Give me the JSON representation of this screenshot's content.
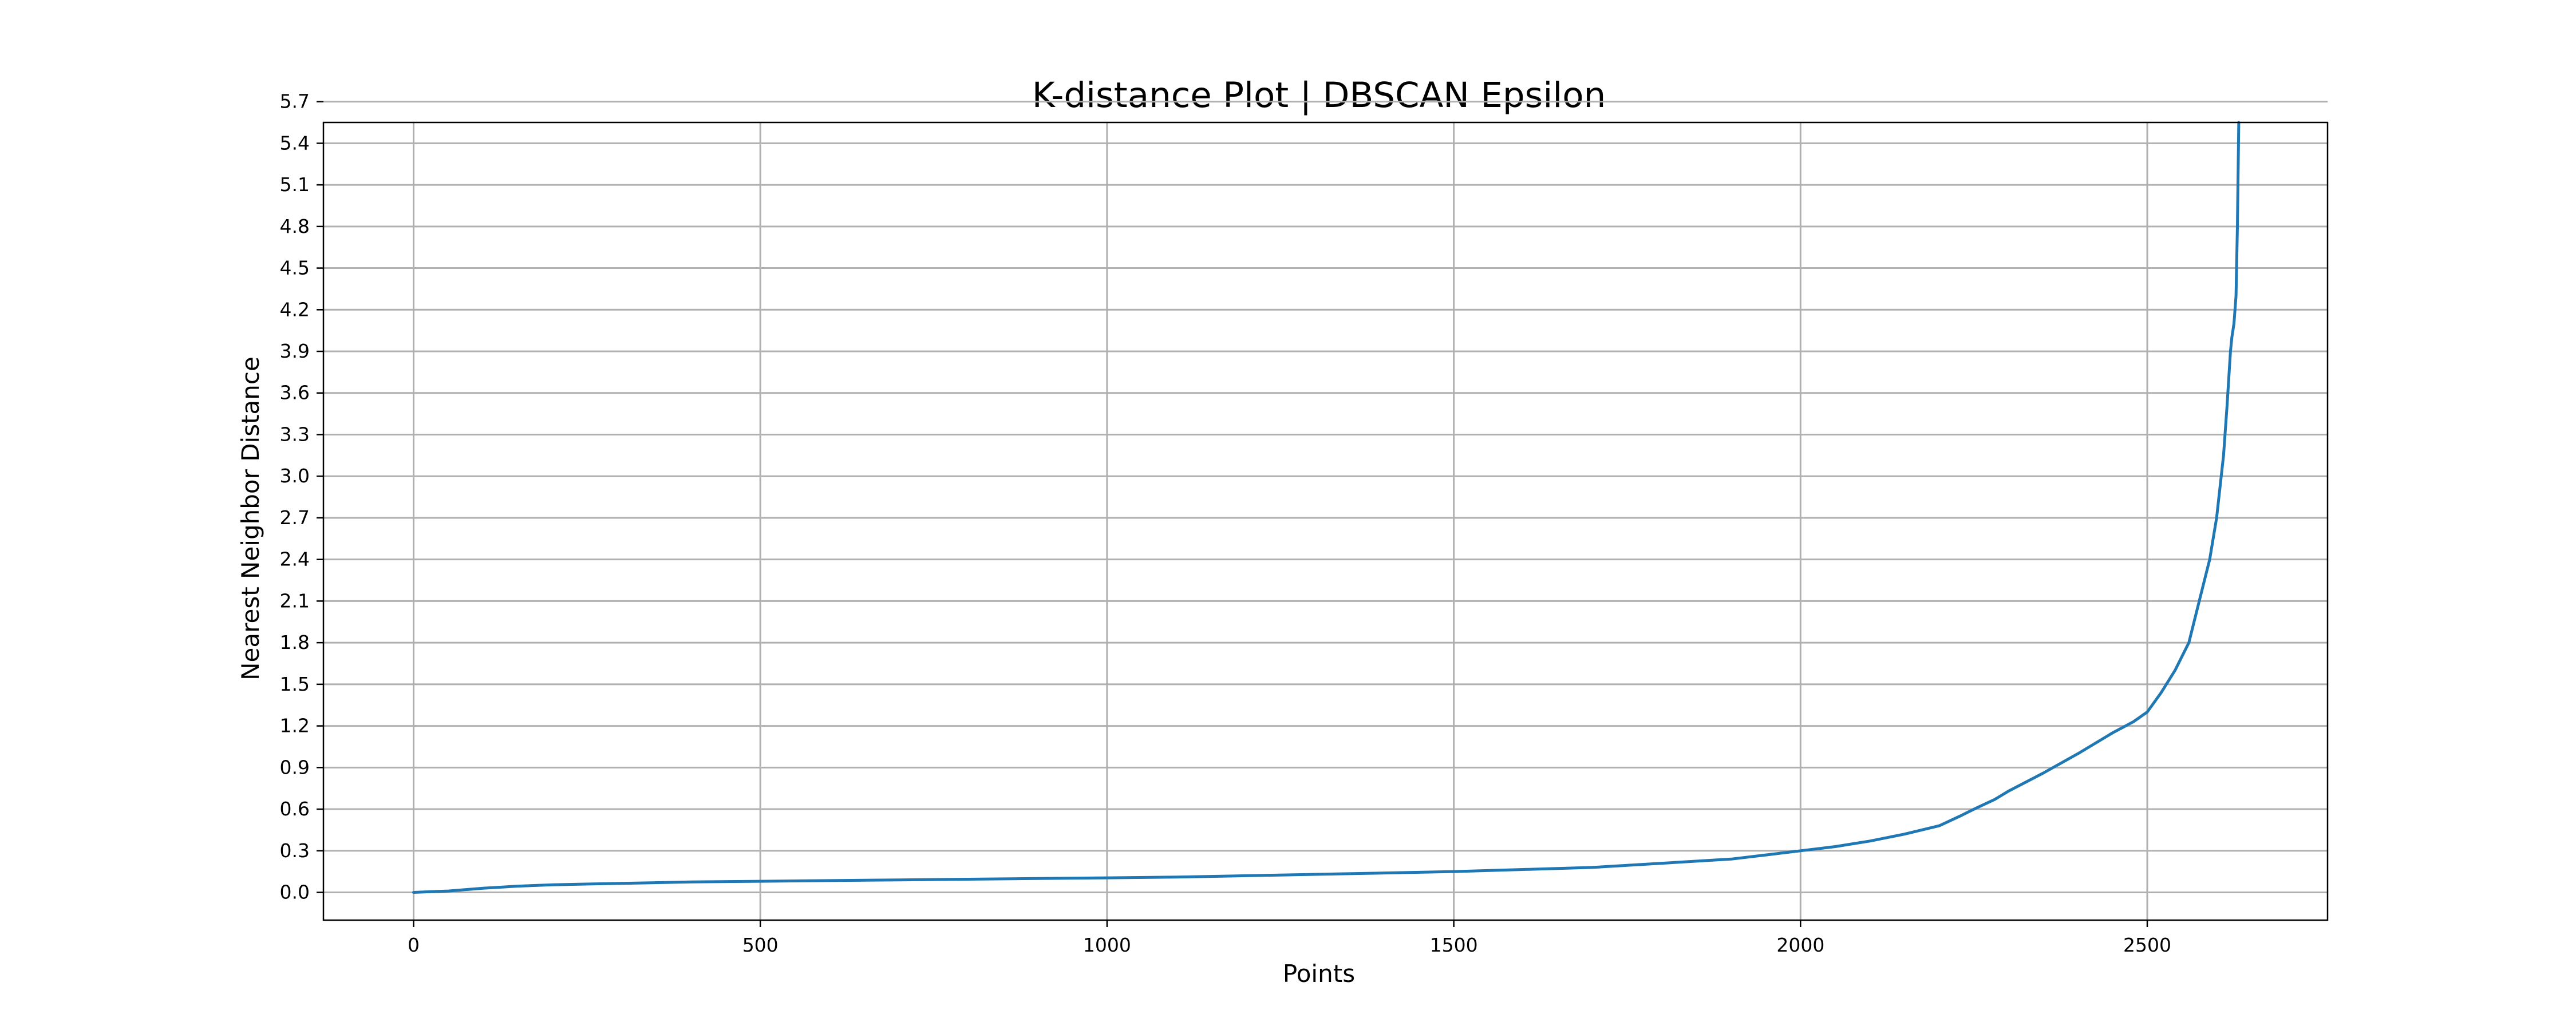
{
  "chart_data": {
    "type": "line",
    "title": "K-distance Plot | DBSCAN Epsilon",
    "xlabel": "Points",
    "ylabel": "Nearest Neighbor Distance",
    "xlim": [
      -130,
      2760
    ],
    "ylim": [
      -0.2,
      5.55
    ],
    "x_ticks": [
      0,
      500,
      1000,
      1500,
      2000,
      2500
    ],
    "y_ticks": [
      0.0,
      0.3,
      0.6,
      0.9,
      1.2,
      1.5,
      1.8,
      2.1,
      2.4,
      2.7,
      3.0,
      3.3,
      3.6,
      3.9,
      4.2,
      4.5,
      4.8,
      5.1,
      5.4,
      5.7
    ],
    "y_tick_labels": [
      "0.0",
      "0.3",
      "0.6",
      "0.9",
      "1.2",
      "1.5",
      "1.8",
      "2.1",
      "2.4",
      "2.7",
      "3.0",
      "3.3",
      "3.6",
      "3.9",
      "4.2",
      "4.5",
      "4.8",
      "5.1",
      "5.4",
      "5.7"
    ],
    "grid": true,
    "series": [
      {
        "color": "#1f77b4",
        "x": [
          0,
          50,
          100,
          150,
          200,
          300,
          400,
          500,
          700,
          900,
          1000,
          1100,
          1200,
          1300,
          1400,
          1500,
          1600,
          1700,
          1800,
          1900,
          1950,
          2000,
          2050,
          2100,
          2150,
          2200,
          2230,
          2250,
          2280,
          2300,
          2350,
          2400,
          2450,
          2480,
          2500,
          2520,
          2540,
          2560,
          2570,
          2580,
          2590,
          2600,
          2610,
          2615,
          2620,
          2622,
          2625,
          2628,
          2630,
          2632
        ],
        "y": [
          0.0,
          0.01,
          0.03,
          0.045,
          0.055,
          0.065,
          0.075,
          0.08,
          0.09,
          0.1,
          0.105,
          0.11,
          0.12,
          0.13,
          0.14,
          0.15,
          0.165,
          0.18,
          0.21,
          0.24,
          0.27,
          0.3,
          0.33,
          0.37,
          0.42,
          0.48,
          0.55,
          0.6,
          0.67,
          0.73,
          0.86,
          1.0,
          1.15,
          1.23,
          1.3,
          1.44,
          1.6,
          1.8,
          2.0,
          2.2,
          2.4,
          2.7,
          3.15,
          3.5,
          3.9,
          4.0,
          4.1,
          4.3,
          4.8,
          5.55
        ]
      }
    ]
  }
}
